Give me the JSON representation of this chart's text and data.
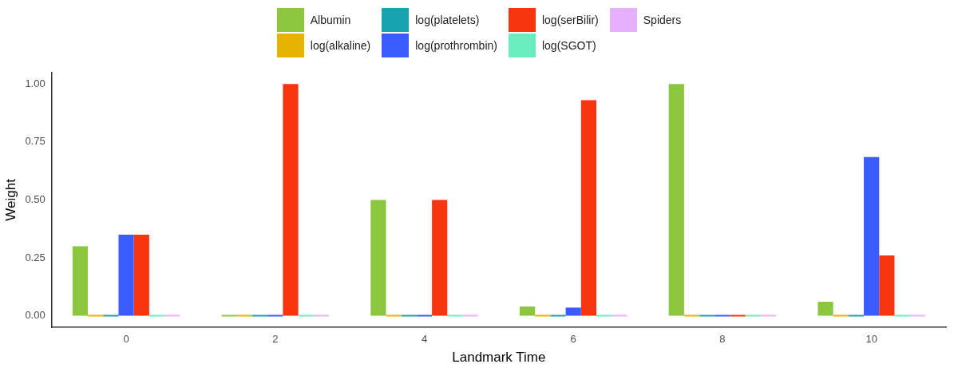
{
  "chart_data": {
    "type": "bar",
    "xlabel": "Landmark Time",
    "ylabel": "Weight",
    "categories": [
      "0",
      "2",
      "4",
      "6",
      "8",
      "10"
    ],
    "series": [
      {
        "name": "Albumin",
        "color": "#8cc63f",
        "values": [
          0.3,
          0,
          0.5,
          0.04,
          1.0,
          0.06
        ]
      },
      {
        "name": "log(alkaline)",
        "color": "#e6b400",
        "values": [
          0,
          0,
          0,
          0,
          0,
          0
        ]
      },
      {
        "name": "log(platelets)",
        "color": "#17a3b0",
        "values": [
          0,
          0,
          0,
          0,
          0,
          0
        ]
      },
      {
        "name": "log(prothrombin)",
        "color": "#3a5bff",
        "values": [
          0.35,
          0,
          0,
          0.035,
          0,
          0.685
        ]
      },
      {
        "name": "log(serBilir)",
        "color": "#f8350f",
        "values": [
          0.35,
          1.0,
          0.5,
          0.93,
          0,
          0.26
        ]
      },
      {
        "name": "log(SGOT)",
        "color": "#6beebf",
        "values": [
          0,
          0,
          0,
          0,
          0,
          0
        ]
      },
      {
        "name": "Spiders",
        "color": "#e6b0ff",
        "values": [
          0,
          0,
          0,
          0,
          0,
          0
        ]
      }
    ],
    "ylim": [
      -0.05,
      1.05
    ],
    "yticks": [
      {
        "value": 0,
        "label": "0.00"
      },
      {
        "value": 0.25,
        "label": "0.25"
      },
      {
        "value": 0.5,
        "label": "0.50"
      },
      {
        "value": 0.75,
        "label": "0.75"
      },
      {
        "value": 1,
        "label": "1.00"
      }
    ],
    "grid": false,
    "legend": "top"
  }
}
